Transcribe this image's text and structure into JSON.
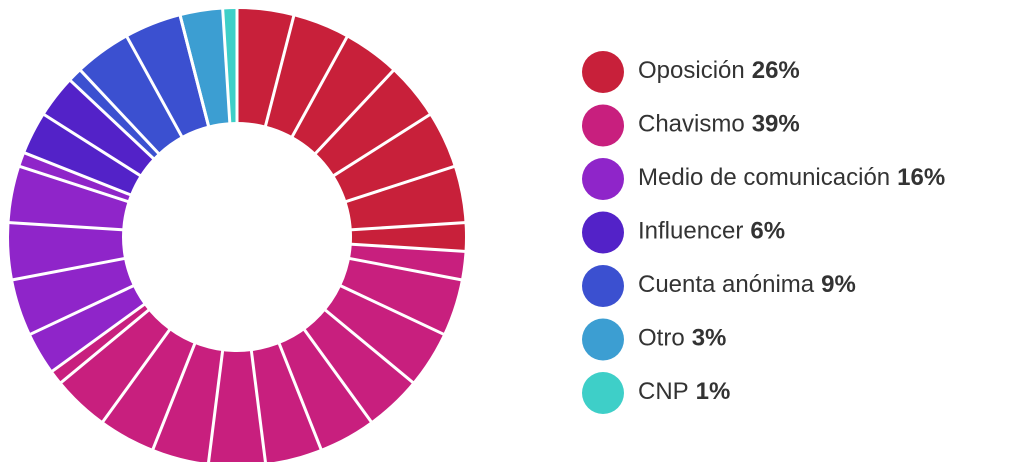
{
  "chart_data": {
    "type": "donut",
    "categories": [
      "Oposición",
      "Chavismo",
      "Medio de comunicación",
      "Influencer",
      "Cuenta anónima",
      "Otro",
      "CNP"
    ],
    "values": [
      26,
      39,
      16,
      6,
      9,
      3,
      1
    ],
    "value_labels": [
      "26%",
      "39%",
      "16%",
      "6%",
      "9%",
      "3%",
      "1%"
    ],
    "colors": [
      "#c8203a",
      "#c81f7e",
      "#8f25c9",
      "#5322c8",
      "#3b50d0",
      "#3c9ed2",
      "#3ecfc8"
    ]
  }
}
